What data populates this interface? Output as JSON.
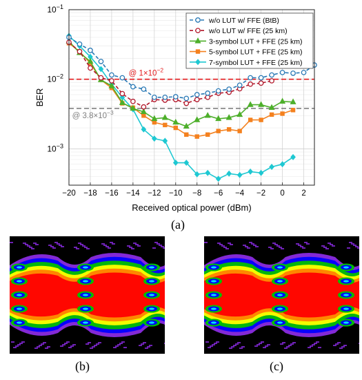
{
  "chart_data": {
    "type": "line",
    "xlabel": "Received optical power (dBm)",
    "ylabel": "BER",
    "xlim": [
      -20,
      3
    ],
    "ylim": [
      0.0003,
      0.1
    ],
    "yscale": "log",
    "grid": true,
    "legend_position": "top-right",
    "x_ticks": [
      "-20",
      "-18",
      "-16",
      "-14",
      "-12",
      "-10",
      "-8",
      "-6",
      "-4",
      "-2",
      "0",
      "2"
    ],
    "y_ticks": [
      {
        "base": "10",
        "exp": "-1",
        "value": 0.1
      },
      {
        "base": "10",
        "exp": "-2",
        "value": 0.01
      },
      {
        "base": "10",
        "exp": "-3",
        "value": 0.001
      }
    ],
    "reference_lines": [
      {
        "value": 0.01,
        "label_prefix": "@ 1×10",
        "label_exp": "−2",
        "color": "#e31a1c"
      },
      {
        "value": 0.0038,
        "label_prefix": "@ 3.8×10",
        "label_exp": "−3",
        "color": "#808080"
      }
    ],
    "series": [
      {
        "name": "w/o LUT w/ FFE (BtB)",
        "color": "#2878b5",
        "marker": "circle-open",
        "dash": true,
        "x": [
          -20,
          -19,
          -18,
          -17,
          -16,
          -15,
          -14,
          -13,
          -12,
          -11,
          -10,
          -9,
          -8,
          -7,
          -6,
          -5,
          -4,
          -3,
          -2,
          -1,
          0,
          1,
          2,
          3
        ],
        "y": [
          0.04,
          0.032,
          0.026,
          0.018,
          0.0115,
          0.0105,
          0.0078,
          0.0072,
          0.0055,
          0.0055,
          0.0056,
          0.0053,
          0.006,
          0.0063,
          0.0068,
          0.0072,
          0.0082,
          0.0105,
          0.0105,
          0.0115,
          0.0125,
          0.0122,
          0.0125,
          0.016
        ]
      },
      {
        "name": "w/o LUT w/ FFE (25 km)",
        "color": "#b2182b",
        "marker": "circle-open",
        "dash": true,
        "x": [
          -20,
          -19,
          -18,
          -17,
          -16,
          -15,
          -14,
          -13,
          -12,
          -11,
          -10,
          -9,
          -8,
          -7,
          -6,
          -5,
          -4,
          -3,
          -2,
          -1
        ],
        "y": [
          0.034,
          0.025,
          0.0145,
          0.0105,
          0.0095,
          0.0062,
          0.0048,
          0.004,
          0.0051,
          0.005,
          0.0051,
          0.0045,
          0.0051,
          0.0055,
          0.0063,
          0.0065,
          0.0073,
          0.0085,
          0.0088,
          0.0095
        ]
      },
      {
        "name": "3-symbol LUT + FFE (25 km)",
        "color": "#4daf2a",
        "marker": "triangle",
        "x": [
          -20,
          -19,
          -18,
          -17,
          -16,
          -15,
          -14,
          -13,
          -12,
          -11,
          -10,
          -9,
          -8,
          -7,
          -6,
          -5,
          -4,
          -3,
          -2,
          -1,
          0,
          1
        ],
        "y": [
          0.035,
          0.024,
          0.018,
          0.0098,
          0.008,
          0.0046,
          0.0038,
          0.0034,
          0.0027,
          0.0028,
          0.0024,
          0.0021,
          0.0026,
          0.003,
          0.0027,
          0.0028,
          0.0031,
          0.0043,
          0.0043,
          0.0039,
          0.0048,
          0.0047
        ]
      },
      {
        "name": "5-symbol LUT + FFE (25 km)",
        "color": "#f4811f",
        "marker": "square",
        "x": [
          -20,
          -19,
          -18,
          -17,
          -16,
          -15,
          -14,
          -13,
          -12,
          -11,
          -10,
          -9,
          -8,
          -7,
          -6,
          -5,
          -4,
          -3,
          -2,
          -1,
          0,
          1
        ],
        "y": [
          0.033,
          0.025,
          0.017,
          0.0098,
          0.0075,
          0.0045,
          0.0039,
          0.003,
          0.0024,
          0.0022,
          0.002,
          0.0016,
          0.0015,
          0.0016,
          0.0018,
          0.0019,
          0.0018,
          0.0026,
          0.0026,
          0.0031,
          0.0032,
          0.0036
        ]
      },
      {
        "name": "7-symbol LUT + FFE (25 km)",
        "color": "#1ec8d2",
        "marker": "diamond",
        "x": [
          -20,
          -19,
          -18,
          -17,
          -16,
          -15,
          -14,
          -13,
          -12,
          -11,
          -10,
          -9,
          -8,
          -7,
          -6,
          -5,
          -4,
          -3,
          -2,
          -1,
          0,
          1
        ],
        "y": [
          0.042,
          0.03,
          0.021,
          0.014,
          0.0085,
          0.0055,
          0.0037,
          0.0019,
          0.0014,
          0.0013,
          0.00063,
          0.00063,
          0.00043,
          0.00045,
          0.00037,
          0.00044,
          0.00042,
          0.00047,
          0.00045,
          0.00055,
          0.0006,
          0.00076
        ]
      }
    ]
  },
  "captions": {
    "a": "(a)",
    "b": "(b)",
    "c": "(c)"
  },
  "colors": {
    "eye_background": "#000000",
    "eye_palette": [
      "#8a2be2",
      "#0000ff",
      "#00c000",
      "#ffff00",
      "#ff8000",
      "#ff0000"
    ]
  }
}
